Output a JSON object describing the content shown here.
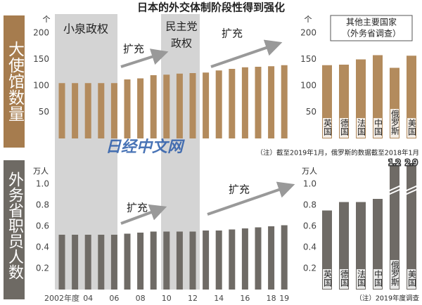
{
  "title": "日本的外交体制阶段性得到强化",
  "row_labels": [
    "大使馆数量",
    "外务省职员人数"
  ],
  "watermark": "日经中文网",
  "chart_data": [
    {
      "type": "bar",
      "y_unit": "个",
      "color": "#b38b5d",
      "values": [
        105,
        105,
        105,
        105,
        105,
        112,
        114,
        120,
        121,
        123,
        124,
        125,
        129,
        132,
        135,
        136,
        137,
        139
      ],
      "ylim": [
        0,
        200
      ],
      "yticks": [
        50,
        100,
        150,
        200
      ],
      "annotations": [
        "小泉政权",
        "扩充",
        "民主党",
        "政权",
        "扩充"
      ]
    },
    {
      "type": "bar",
      "y_unit": "万人",
      "color": "#6f6b66",
      "categories": [
        "2002年度",
        null,
        "04",
        null,
        "06",
        null,
        "08",
        null,
        "10",
        null,
        "12",
        null,
        "14",
        null,
        "16",
        null,
        "18",
        "19"
      ],
      "values": [
        0.52,
        0.52,
        0.52,
        0.52,
        0.52,
        0.53,
        0.54,
        0.55,
        0.55,
        0.55,
        0.55,
        0.56,
        0.56,
        0.57,
        0.58,
        0.59,
        0.6,
        0.61
      ],
      "ylim": [
        0,
        1
      ],
      "yticks": [
        0.2,
        0.4,
        0.6,
        0.8,
        {
          "value": 1,
          "label": "1.0"
        }
      ],
      "annotations": [
        "扩充",
        "扩充"
      ]
    },
    {
      "type": "bar",
      "y_unit": "个",
      "color": "#b38b5d",
      "legend_box": [
        "其他主要国家",
        "（外务省调查）"
      ],
      "categories": [
        "英国",
        "德国",
        "法国",
        "中国",
        "俄罗斯",
        "美国"
      ],
      "values": [
        139,
        140,
        150,
        158,
        134,
        157
      ],
      "ylim": [
        0,
        200
      ],
      "yticks": [
        50,
        100,
        150,
        200
      ],
      "note": "（注）截至2019年1月，俄罗斯的数据截至2018年1月"
    },
    {
      "type": "bar",
      "y_unit": "万人",
      "color": "#6f6b66",
      "categories": [
        "英国",
        "德国",
        "法国",
        "中国",
        "俄罗斯",
        "美国"
      ],
      "values": [
        0.75,
        0.83,
        0.83,
        0.86,
        1.2,
        2.9
      ],
      "value_labels": [
        null,
        null,
        null,
        null,
        "1.2",
        "2.9"
      ],
      "ylim": [
        0,
        1
      ],
      "yticks": [
        0.2,
        0.4,
        0.6,
        0.8,
        {
          "value": 1,
          "label": "1.0"
        }
      ],
      "note": "（注）2019年度调查"
    }
  ]
}
